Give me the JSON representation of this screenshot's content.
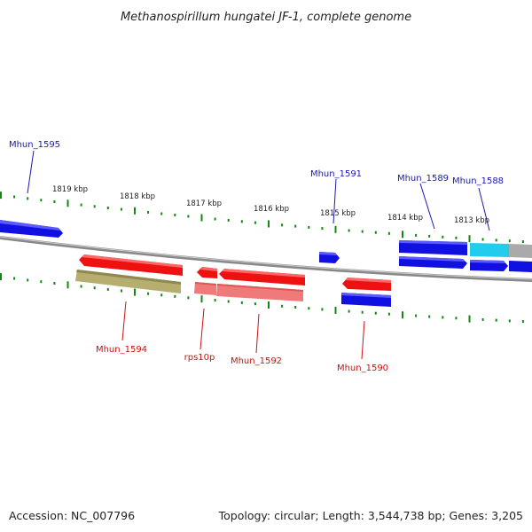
{
  "title": "Methanospirillum hungatei JF-1, complete genome",
  "accession": "Accession: NC_007796",
  "topology": "Topology: circular; Length: 3,544,738 bp; Genes: 3,205",
  "colors": {
    "forward": "#1010e0",
    "reverse": "#ee1111",
    "cyan": "#22ccee",
    "gray": "#aaaaaa",
    "olive": "#b5ae6e",
    "pink": "#f07a7a",
    "backbone": "#888888",
    "tick": "#118811",
    "label_forward": "#1a1ab0",
    "label_reverse": "#cc1111"
  },
  "kbp_labels": [
    "1819 kbp",
    "1818 kbp",
    "1817 kbp",
    "1816 kbp",
    "1815 kbp",
    "1814 kbp",
    "1813 kbp"
  ],
  "genes": [
    {
      "name": "Mhun_1595",
      "strand": "forward"
    },
    {
      "name": "Mhun_1591",
      "strand": "forward"
    },
    {
      "name": "Mhun_1589",
      "strand": "forward"
    },
    {
      "name": "Mhun_1588",
      "strand": "forward"
    },
    {
      "name": "Mhun_1594",
      "strand": "reverse"
    },
    {
      "name": "rps10p",
      "strand": "reverse"
    },
    {
      "name": "Mhun_1592",
      "strand": "reverse"
    },
    {
      "name": "Mhun_1590",
      "strand": "reverse"
    }
  ]
}
